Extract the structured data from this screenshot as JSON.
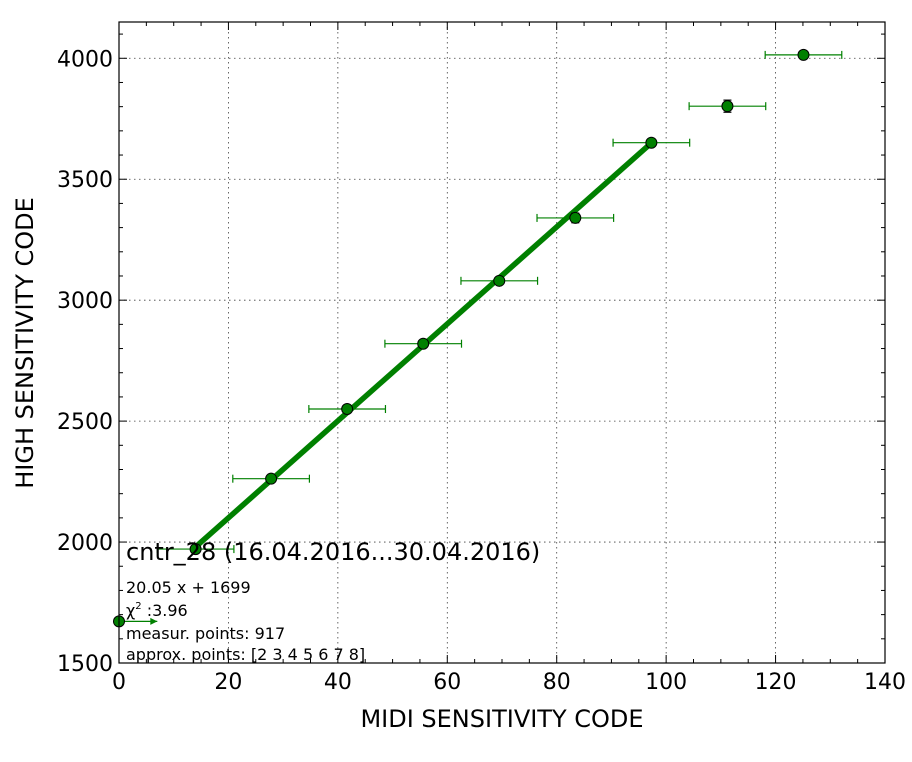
{
  "chart_data": {
    "type": "scatter",
    "title": "cntr_28 (16.04.2016...30.04.2016)",
    "xlabel": "MIDI SENSITIVITY CODE",
    "ylabel": "HIGH SENSITIVITY CODE",
    "xlim": [
      0,
      140
    ],
    "ylim": [
      1500,
      4150
    ],
    "xticks": [
      0,
      20,
      40,
      60,
      80,
      100,
      120,
      140
    ],
    "yticks": [
      1500,
      2000,
      2500,
      3000,
      3500,
      4000
    ],
    "grid": true,
    "colors": {
      "series": "#008000",
      "marker_edge": "#000000"
    },
    "points": [
      {
        "x": 0,
        "y": 1672,
        "xerr_minus": 0,
        "xerr_plus": 7,
        "yerr": 0,
        "xerr_arrow": true
      },
      {
        "x": 14,
        "y": 1971,
        "xerr_minus": 7,
        "xerr_plus": 7,
        "yerr": 0
      },
      {
        "x": 27.8,
        "y": 2262,
        "xerr_minus": 7,
        "xerr_plus": 7,
        "yerr": 0
      },
      {
        "x": 41.7,
        "y": 2550,
        "xerr_minus": 7,
        "xerr_plus": 7,
        "yerr": 0
      },
      {
        "x": 55.6,
        "y": 2820,
        "xerr_minus": 7,
        "xerr_plus": 7,
        "yerr": 0
      },
      {
        "x": 69.5,
        "y": 3080,
        "xerr_minus": 7,
        "xerr_plus": 7,
        "yerr": 0
      },
      {
        "x": 83.4,
        "y": 3340,
        "xerr_minus": 7,
        "xerr_plus": 7,
        "yerr": 20
      },
      {
        "x": 97.3,
        "y": 3651,
        "xerr_minus": 7,
        "xerr_plus": 7,
        "yerr": 15
      },
      {
        "x": 111.2,
        "y": 3802,
        "xerr_minus": 7,
        "xerr_plus": 7,
        "yerr": 25
      },
      {
        "x": 125.1,
        "y": 4014,
        "xerr_minus": 7,
        "xerr_plus": 7,
        "yerr": 10
      }
    ],
    "fit": {
      "slope": 20.05,
      "intercept": 1699,
      "x_range": [
        14,
        97.3
      ]
    },
    "annotations": {
      "equation": "20.05 x + 1699",
      "chi_symbol": "χ",
      "chi_superscript": "2",
      "chi_value": " :3.96",
      "measur_points": "measur. points: 917",
      "approx_points": "approx. points: [2 3 4 5 6 7 8]"
    }
  }
}
